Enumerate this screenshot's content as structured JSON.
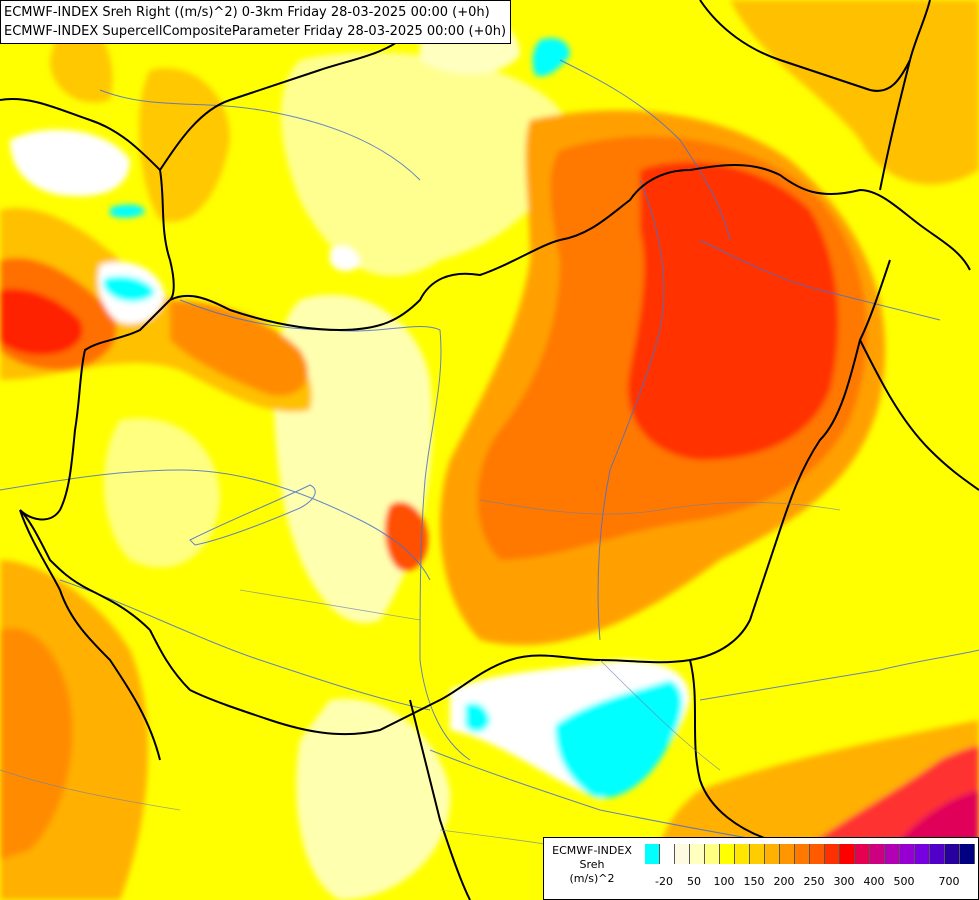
{
  "title": {
    "line1": "ECMWF-INDEX Sreh Right ((m/s)^2) 0-3km Friday 28-03-2025 00:00 (+0h)",
    "line2": "ECMWF-INDEX SupercellCompositeParameter Friday 28-03-2025 00:00 (+0h)"
  },
  "legend": {
    "title": "ECMWF-INDEX",
    "variable": "Sreh",
    "unit": "(m/s)^2",
    "colors": [
      "#00ffff",
      "#ffffff",
      "#fffbe0",
      "#ffffc0",
      "#ffff80",
      "#ffff00",
      "#ffe600",
      "#ffcc00",
      "#ffb000",
      "#ff9600",
      "#ff7800",
      "#ff5a00",
      "#ff3000",
      "#ff0000",
      "#e60050",
      "#cc0080",
      "#b400b4",
      "#9600d2",
      "#7800e0",
      "#5000c8",
      "#2800a0",
      "#000080"
    ],
    "ticks": [
      "-20",
      "50",
      "100",
      "150",
      "200",
      "250",
      "300",
      "400",
      "500",
      "700"
    ]
  },
  "palette": {
    "field_base": "#ffff00",
    "field_yellow_light": "#ffff80",
    "field_pale": "#ffffc0",
    "field_orange": "#ffb000",
    "field_red_orange": "#ff7800",
    "field_red": "#ff3000",
    "field_magenta": "#e60050",
    "field_cyan": "#00ffff",
    "border_color": "#000000",
    "river_color": "#4a6fd0"
  }
}
